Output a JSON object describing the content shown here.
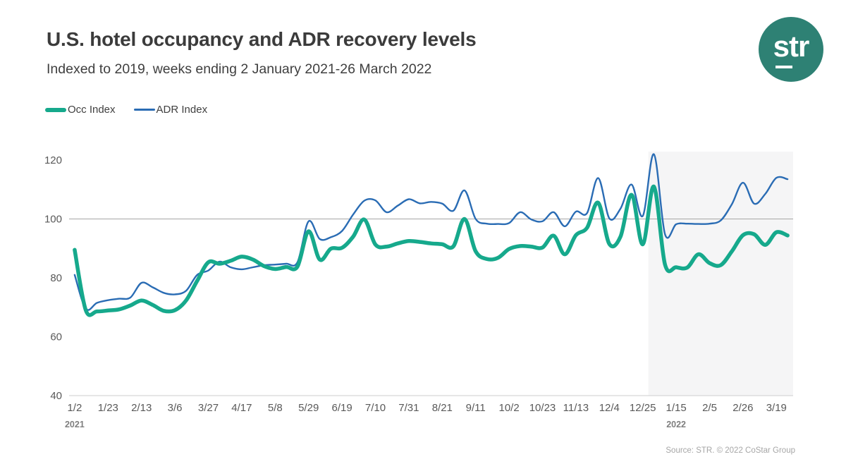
{
  "header": {
    "title": "U.S. hotel occupancy and ADR recovery levels",
    "subtitle": "Indexed to 2019, weeks ending 2 January 2021-26 March 2022",
    "logo_text": "str"
  },
  "legend": {
    "occ_label": "Occ Index",
    "adr_label": "ADR Index"
  },
  "footer": {
    "source": "Source: STR. © 2022 CoStar Group"
  },
  "colors": {
    "occ": "#16a98c",
    "adr": "#2a6cb4",
    "logo_bg": "#2e8174",
    "gridline": "#a6a6a6",
    "axis_line": "#d8d8d8",
    "highlight": "#f5f5f6",
    "tick_text": "#595959",
    "year_text": "#7f7f7f"
  },
  "chart_data": {
    "type": "line",
    "x": [
      "1/2",
      "1/9",
      "1/16",
      "1/23",
      "1/30",
      "2/6",
      "2/13",
      "2/20",
      "2/27",
      "3/6",
      "3/13",
      "3/20",
      "3/27",
      "4/3",
      "4/10",
      "4/17",
      "4/24",
      "5/1",
      "5/8",
      "5/15",
      "5/22",
      "5/29",
      "6/5",
      "6/12",
      "6/19",
      "6/26",
      "7/3",
      "7/10",
      "7/17",
      "7/24",
      "7/31",
      "8/7",
      "8/14",
      "8/21",
      "8/28",
      "9/4",
      "9/11",
      "9/18",
      "9/25",
      "10/2",
      "10/9",
      "10/16",
      "10/23",
      "10/30",
      "11/6",
      "11/13",
      "11/20",
      "11/27",
      "12/4",
      "12/11",
      "12/18",
      "12/25",
      "1/1",
      "1/8",
      "1/15",
      "1/22",
      "1/29",
      "2/5",
      "2/12",
      "2/19",
      "2/26",
      "3/5",
      "3/12",
      "3/19",
      "3/26"
    ],
    "x_tick_every": 3,
    "series": [
      {
        "name": "ADR Index",
        "color_key": "adr",
        "stroke_width": 2.4,
        "values": [
          81,
          69.5,
          71.5,
          72.4,
          72.9,
          73.3,
          78.3,
          76.8,
          74.9,
          74.4,
          75.6,
          81,
          82.5,
          85.5,
          83.6,
          82.9,
          83.6,
          84.3,
          84.5,
          84.8,
          85.3,
          99.2,
          93.2,
          93.8,
          95.9,
          101.5,
          106.2,
          106.3,
          102.3,
          104.5,
          106.7,
          105.3,
          105.8,
          105.2,
          102.8,
          109.7,
          100,
          98.4,
          98.3,
          98.6,
          102.3,
          99.8,
          99.2,
          102.3,
          97.5,
          102.5,
          102,
          113.9,
          100.2,
          103.5,
          111.7,
          101,
          122,
          94.8,
          98.2,
          98.4,
          98.3,
          98.4,
          99.5,
          105,
          112.3,
          105.2,
          108.5,
          114,
          113.5
        ]
      },
      {
        "name": "Occ Index",
        "color_key": "occ",
        "stroke_width": 5.5,
        "values": [
          89.5,
          69,
          68.6,
          68.9,
          69.3,
          70.6,
          72.3,
          70.8,
          68.8,
          69,
          72.3,
          79,
          85.3,
          84.8,
          85.8,
          87.2,
          86.2,
          84,
          83,
          83.7,
          83.8,
          95.8,
          86.2,
          89.9,
          90.2,
          94,
          99.8,
          91.3,
          90.6,
          91.7,
          92.5,
          92.2,
          91.7,
          91.4,
          90.7,
          100,
          89,
          86.4,
          86.8,
          89.8,
          90.8,
          90.6,
          90.3,
          94.3,
          88,
          94.5,
          97,
          105.5,
          91.5,
          94,
          108.2,
          91.4,
          111,
          84.5,
          83.6,
          83.5,
          88,
          85,
          84.3,
          89,
          94.5,
          94.8,
          91.2,
          95.5,
          94.4
        ]
      }
    ],
    "ylim": [
      40,
      120
    ],
    "yticks": [
      40,
      60,
      80,
      100,
      120
    ],
    "gridline_at": 100,
    "grid": "single-line-at-100",
    "legend_position": "top-left",
    "year_labels": [
      {
        "text": "2021",
        "index": 0
      },
      {
        "text": "2022",
        "index": 54
      }
    ],
    "highlight_region": {
      "start_index": 52,
      "label": "2022 weeks shaded"
    }
  }
}
